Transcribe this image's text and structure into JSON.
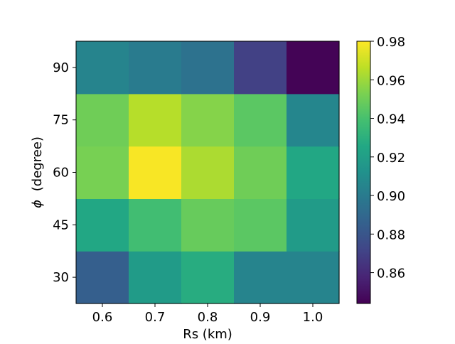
{
  "chart_data": {
    "type": "heatmap",
    "title": "",
    "xlabel": "Rs (km)",
    "ylabel": "(degree)",
    "ylabel_symbol": "ϕ",
    "x_categories": [
      "0.6",
      "0.7",
      "0.8",
      "0.9",
      "1.0"
    ],
    "y_categories": [
      "30",
      "45",
      "60",
      "75",
      "90"
    ],
    "values": [
      [
        0.885,
        0.918,
        0.928,
        0.905,
        0.905
      ],
      [
        0.925,
        0.938,
        0.948,
        0.945,
        0.918
      ],
      [
        0.952,
        0.979,
        0.963,
        0.95,
        0.925
      ],
      [
        0.95,
        0.965,
        0.955,
        0.945,
        0.906
      ],
      [
        0.905,
        0.9,
        0.895,
        0.87,
        0.845
      ]
    ],
    "colormap": "viridis",
    "color_range": [
      0.844,
      0.98
    ],
    "colorbar_ticks": [
      "0.86",
      "0.88",
      "0.90",
      "0.92",
      "0.94",
      "0.96",
      "0.98"
    ],
    "grid": false
  }
}
